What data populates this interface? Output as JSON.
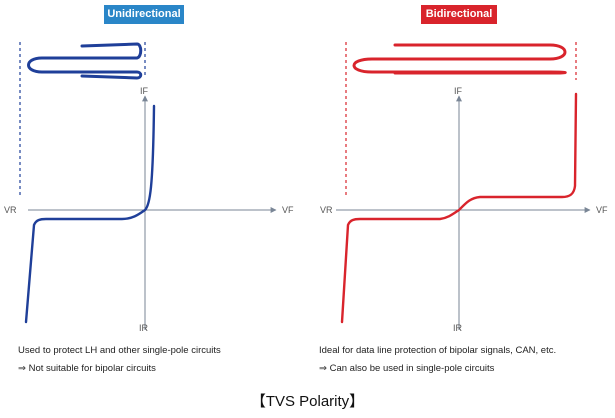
{
  "colors": {
    "unidirectional": "#1f3f99",
    "bidirectional": "#d9242c",
    "badge_uni": "#2a86c8",
    "badge_bi": "#d9242c",
    "axis": "#7a8696"
  },
  "left_panel": {
    "badge": "Unidirectional",
    "axis_labels": {
      "if": "IF",
      "ir": "IR",
      "vr": "VR",
      "vf": "VF"
    },
    "caption_line1": "Used to protect LH and other single-pole circuits",
    "caption_line2": "⇒ Not suitable for bipolar circuits"
  },
  "right_panel": {
    "badge": "Bidirectional",
    "axis_labels": {
      "if": "IF",
      "ir": "IR",
      "vr": "VR",
      "vf": "VF"
    },
    "caption_line1": "Ideal for data line protection of bipolar signals, CAN, etc.",
    "caption_line2": "⇒ Can also be used in single-pole circuits"
  },
  "title": "【TVS Polarity】"
}
